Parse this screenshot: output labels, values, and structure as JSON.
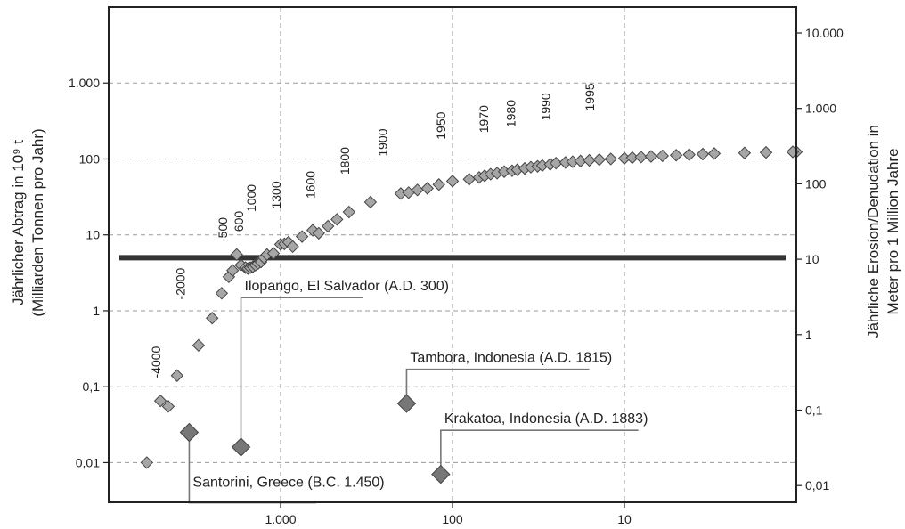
{
  "chart_data": {
    "type": "scatter",
    "x_scale": "log-reversed",
    "y_scale": "log",
    "grid": true,
    "xlim": [
      10000,
      1
    ],
    "ylim": [
      0.003,
      10000
    ],
    "y2lim": [
      0.006,
      22000
    ],
    "x_ticks": [
      {
        "value": 1000,
        "label": "1.000"
      },
      {
        "value": 100,
        "label": "100"
      },
      {
        "value": 10,
        "label": "10"
      }
    ],
    "y_ticks": [
      {
        "value": 0.01,
        "label": "0,01"
      },
      {
        "value": 0.1,
        "label": "0,1"
      },
      {
        "value": 1,
        "label": "1"
      },
      {
        "value": 10,
        "label": "10"
      },
      {
        "value": 100,
        "label": "100"
      },
      {
        "value": 1000,
        "label": "1.000"
      }
    ],
    "y2_ticks": [
      {
        "value": 0.01,
        "label": "0,01"
      },
      {
        "value": 0.1,
        "label": "0,1"
      },
      {
        "value": 1,
        "label": "1"
      },
      {
        "value": 10,
        "label": "10"
      },
      {
        "value": 100,
        "label": "100"
      },
      {
        "value": 1000,
        "label": "1.000"
      },
      {
        "value": 10000,
        "label": "10.000"
      }
    ],
    "ylabel": [
      "Jährlicher Abtrag in 10⁹ t",
      "(Milliarden Tonnen pro Jahr)"
    ],
    "y2label": [
      "Jährliche Erosion/Denudation in",
      "Meter pro 1 Million Jahre"
    ],
    "baseline_value": 5,
    "colors": {
      "points": "#a6a6a6",
      "events": "#777777",
      "baseline": "#333333",
      "grid": "#9a9a9a"
    },
    "points": [
      [
        6000,
        0.01
      ],
      [
        5000,
        0.065
      ],
      [
        4500,
        0.055
      ],
      [
        4000,
        0.14
      ],
      [
        3000,
        0.35
      ],
      [
        2500,
        0.8
      ],
      [
        2200,
        1.7
      ],
      [
        2000,
        2.8
      ],
      [
        1900,
        3.4
      ],
      [
        1800,
        5.5
      ],
      [
        1700,
        4.0
      ],
      [
        1600,
        3.7
      ],
      [
        1550,
        3.6
      ],
      [
        1500,
        3.7
      ],
      [
        1450,
        3.8
      ],
      [
        1400,
        4.0
      ],
      [
        1350,
        4.2
      ],
      [
        1300,
        4.4
      ],
      [
        1250,
        5.0
      ],
      [
        1200,
        5.5
      ],
      [
        1100,
        5.7
      ],
      [
        1000,
        7.5
      ],
      [
        950,
        7.6
      ],
      [
        900,
        8.0
      ],
      [
        850,
        7.0
      ],
      [
        750,
        9.5
      ],
      [
        650,
        11.5
      ],
      [
        600,
        10.5
      ],
      [
        530,
        13
      ],
      [
        470,
        16
      ],
      [
        400,
        20
      ],
      [
        300,
        27
      ],
      [
        200,
        35
      ],
      [
        180,
        36
      ],
      [
        160,
        39
      ],
      [
        140,
        41
      ],
      [
        120,
        46
      ],
      [
        100,
        51
      ],
      [
        80,
        54
      ],
      [
        70,
        57
      ],
      [
        65,
        60
      ],
      [
        60,
        63
      ],
      [
        55,
        65
      ],
      [
        50,
        68
      ],
      [
        45,
        70
      ],
      [
        42,
        72
      ],
      [
        38,
        75
      ],
      [
        35,
        78
      ],
      [
        32,
        80
      ],
      [
        30,
        82
      ],
      [
        27,
        85
      ],
      [
        25,
        88
      ],
      [
        22,
        90
      ],
      [
        20,
        92
      ],
      [
        18,
        94
      ],
      [
        16,
        96
      ],
      [
        14,
        98
      ],
      [
        12,
        100
      ],
      [
        10,
        102
      ],
      [
        9,
        104
      ],
      [
        8,
        106
      ],
      [
        7,
        108
      ],
      [
        6,
        110
      ],
      [
        5,
        112
      ],
      [
        4.2,
        114
      ],
      [
        3.5,
        116
      ],
      [
        3,
        118
      ],
      [
        2,
        120
      ],
      [
        1.5,
        122
      ],
      [
        1,
        124
      ]
    ],
    "year_labels": [
      {
        "text": "-4000",
        "x": 5000,
        "y": 0.13
      },
      {
        "text": "-2000",
        "x": 3600,
        "y": 1.4
      },
      {
        "text": "-500",
        "x": 2050,
        "y": 8
      },
      {
        "text": "600",
        "x": 1650,
        "y": 11
      },
      {
        "text": "1000",
        "x": 1400,
        "y": 20
      },
      {
        "text": "1300",
        "x": 1000,
        "y": 22
      },
      {
        "text": "1600",
        "x": 630,
        "y": 30
      },
      {
        "text": "1800",
        "x": 400,
        "y": 62
      },
      {
        "text": "1900",
        "x": 240,
        "y": 108
      },
      {
        "text": "1950",
        "x": 110,
        "y": 180
      },
      {
        "text": "1970",
        "x": 62,
        "y": 220
      },
      {
        "text": "1980",
        "x": 43,
        "y": 260
      },
      {
        "text": "1990",
        "x": 27,
        "y": 320
      },
      {
        "text": "1995",
        "x": 15,
        "y": 430
      }
    ],
    "events": [
      {
        "label": "Santorini, Greece (B.C. 1.450)",
        "x": 3400,
        "y": 0.025,
        "label_x": 3400,
        "label_y": 0.0048,
        "line_end_x": 620,
        "side": "below"
      },
      {
        "label": "Ilopango, El Salvador (A.D. 300)",
        "x": 1700,
        "y": 0.016,
        "label_x": 1660,
        "label_y": 1.85,
        "line_end_x": 330,
        "side": "above"
      },
      {
        "label": "Tambora, Indonesia (A.D. 1815)",
        "x": 185,
        "y": 0.06,
        "label_x": 180,
        "label_y": 0.21,
        "line_end_x": 16,
        "side": "above"
      },
      {
        "label": "Krakatoa, Indonesia (A.D. 1883)",
        "x": 117,
        "y": 0.007,
        "label_x": 110,
        "label_y": 0.033,
        "line_end_x": 8.3,
        "side": "above"
      }
    ]
  }
}
